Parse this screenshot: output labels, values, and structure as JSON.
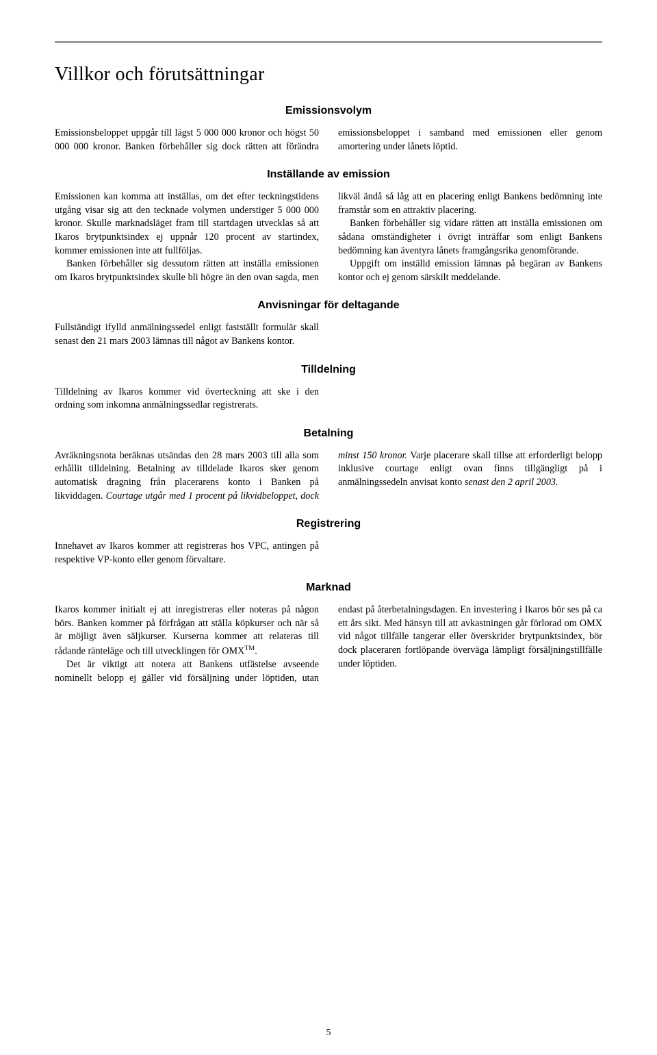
{
  "page": {
    "title": "Villkor och förutsättningar",
    "number": "5",
    "top_rule_color": "#9a9a9a"
  },
  "sections": {
    "emissionsvolym": {
      "heading": "Emissionsvolym",
      "body": "Emissionsbeloppet uppgår till lägst 5 000 000 kronor och högst 50 000 000 kronor. Banken förbehåller sig dock rätten att förändra emissionsbeloppet i samband med emissionen eller genom amortering under lånets löptid."
    },
    "installande": {
      "heading": "Inställande av emission",
      "p1": "Emissionen kan komma att inställas, om det efter teckningstidens utgång visar sig att den tecknade volymen understiger 5 000 000 kronor. Skulle marknadsläget fram till startdagen utvecklas så att Ikaros brytpunktsindex ej uppnår 120 procent av startindex, kommer emissionen inte att fullföljas.",
      "p2a": "Banken förbehåller sig dessutom rätten att inställa emissionen om Ikaros brytpunktsindex skulle bli högre än den ovan sagda, men likväl ändå så låg att en placering",
      "p2b": "enligt Bankens bedömning inte framstår som en attraktiv placering.",
      "p3": "Banken förbehåller sig vidare rätten att inställa emissionen om sådana omständigheter i övrigt inträffar som enligt Bankens bedömning kan äventyra lånets framgångsrika genomförande.",
      "p4": "Uppgift om inställd emission lämnas på begäran av Bankens kontor och ej genom särskilt meddelande."
    },
    "anvisningar": {
      "heading": "Anvisningar för deltagande",
      "body": "Fullständigt ifylld anmälningssedel enligt fastställt formulär skall senast den 21 mars 2003 lämnas till något av Bankens kontor."
    },
    "tilldelning": {
      "heading": "Tilldelning",
      "body": "Tilldelning av Ikaros kommer vid överteckning att ske i den ordning som inkomna anmälningssedlar registrerats."
    },
    "betalning": {
      "heading": "Betalning",
      "p1a": "Avräkningsnota beräknas utsändas den 28 mars 2003 till alla som erhållit tilldelning. Betalning av tilldelade Ikaros sker genom automatisk dragning från placerarens konto i Banken på likviddagen. ",
      "p1b_italic": "Courtage utgår med 1 procent på likvidbeloppet, dock minst 150 kronor.",
      "p1c": " Varje placerare skall tillse att erforderligt belopp inklusive courtage enligt ovan finns tillgängligt på i anmälningssedeln anvisat konto ",
      "p1d_italic": "senast den 2 april 2003."
    },
    "registrering": {
      "heading": "Registrering",
      "body": "Innehavet av Ikaros kommer att registreras hos VPC, antingen på respektive VP-konto eller genom förvaltare."
    },
    "marknad": {
      "heading": "Marknad",
      "p1": "Ikaros kommer initialt ej att inregistreras eller noteras på någon börs. Banken kommer på förfrågan att ställa köpkurser och när så är möjligt även säljkurser. Kurserna kommer att relateras till rådande ränteläge och till utvecklingen för OMX",
      "p1_tm": "TM",
      "p1_end": ".",
      "p2a": "Det är viktigt att notera att Bankens utfästelse avseende nominellt belopp ej gäller vid försäljning",
      "p2b": "under löptiden, utan endast på återbetalningsdagen. En investering i Ikaros bör ses på ca ett års sikt. Med hänsyn till att avkastningen går förlorad om OMX vid något tillfälle tangerar eller överskrider brytpunktsindex, bör dock placeraren fortlöpande överväga lämpligt försäljningstillfälle under löptiden."
    }
  }
}
